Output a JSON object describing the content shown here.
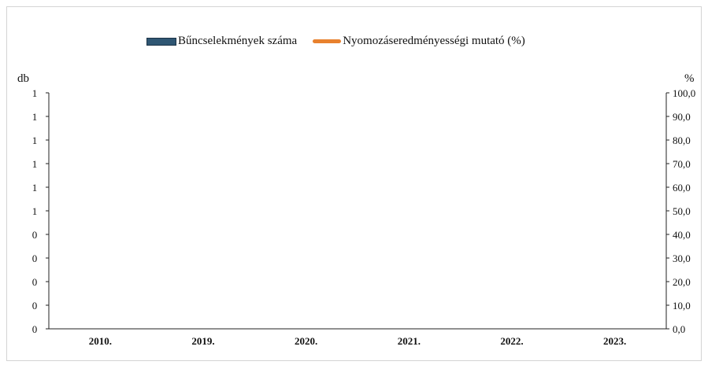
{
  "chart_data": {
    "type": "bar",
    "categories": [
      "2010.",
      "2019.",
      "2020.",
      "2021.",
      "2022.",
      "2023."
    ],
    "series": [
      {
        "name": "Bűncselekmények száma",
        "kind": "bar",
        "axis": "left",
        "color": "#2f5673",
        "values": [
          0,
          0,
          0,
          0,
          0,
          0
        ]
      },
      {
        "name": "Nyomozáseredményességi mutató (%)",
        "kind": "line",
        "axis": "right",
        "color": "#e8812e",
        "values": [
          0,
          0,
          0,
          0,
          0,
          0
        ]
      }
    ],
    "y_left": {
      "unit_label": "db",
      "tick_labels": [
        "0",
        "0",
        "0",
        "0",
        "0",
        "1",
        "1",
        "1",
        "1",
        "1",
        "1"
      ]
    },
    "y_right": {
      "unit_label": "%",
      "tick_labels": [
        "0,0",
        "10,0",
        "20,0",
        "30,0",
        "40,0",
        "50,0",
        "60,0",
        "70,0",
        "80,0",
        "90,0",
        "100,0"
      ],
      "ylim": [
        0,
        100
      ]
    },
    "legend_position": "top-center",
    "grid": false
  }
}
